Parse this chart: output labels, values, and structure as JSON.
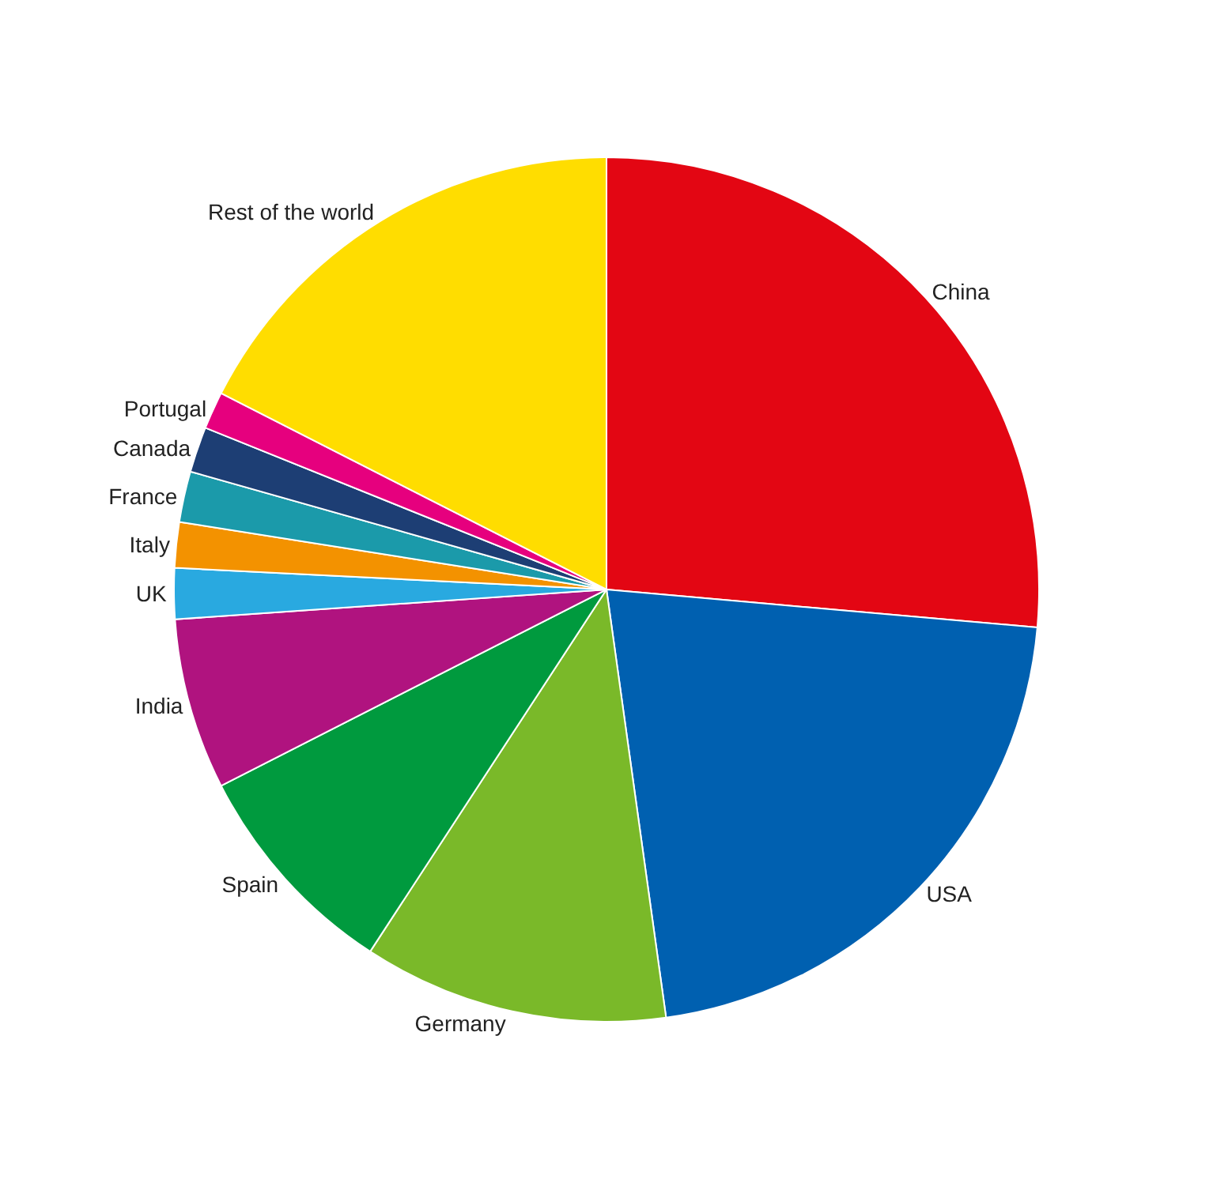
{
  "chart_data": {
    "type": "pie",
    "categories": [
      "China",
      "USA",
      "Germany",
      "Spain",
      "India",
      "UK",
      "Italy",
      "France",
      "Canada",
      "Portugal",
      "Rest of the world"
    ],
    "values": [
      26.4,
      21.4,
      11.4,
      8.3,
      6.4,
      1.9,
      1.7,
      1.9,
      1.7,
      1.4,
      17.5
    ],
    "colors": [
      "#e30613",
      "#0060b0",
      "#7ab929",
      "#009a3e",
      "#b0137f",
      "#29a9e0",
      "#f39200",
      "#1b9aaa",
      "#1d3e74",
      "#e6007e",
      "#ffdd00"
    ],
    "legend": false
  }
}
